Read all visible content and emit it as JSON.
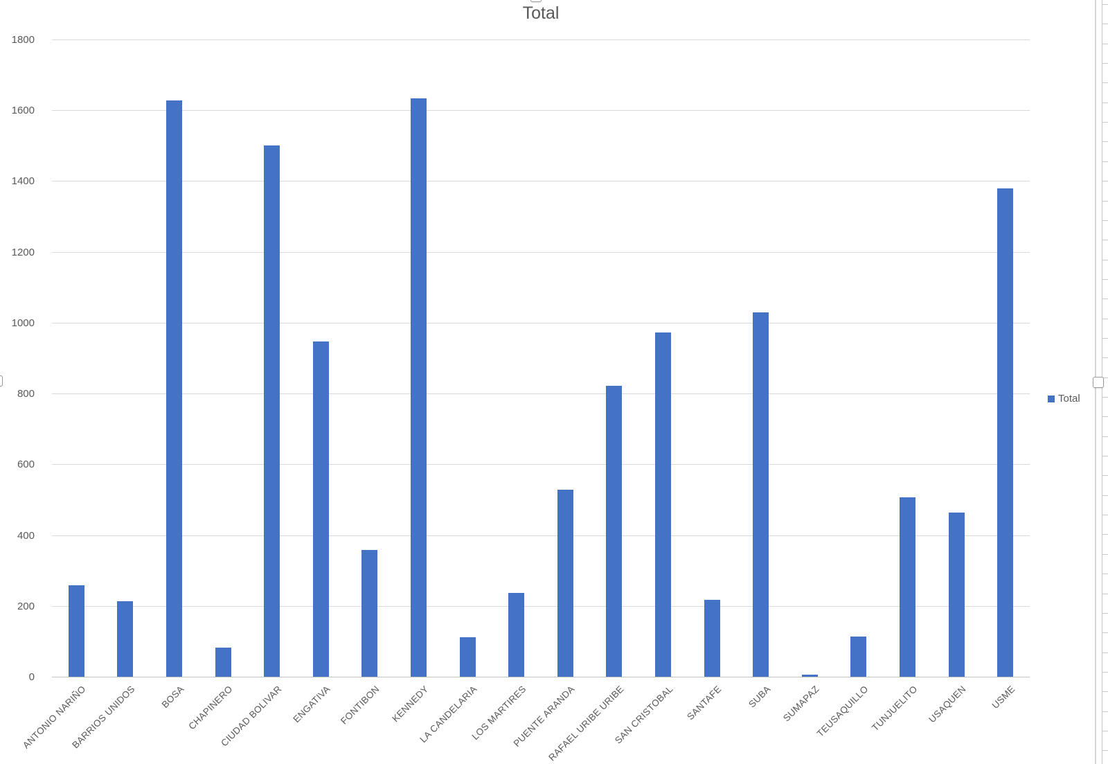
{
  "chart_data": {
    "type": "bar",
    "title": "Total",
    "categories": [
      "ANTONIO NARIÑO",
      "BARRIOS UNIDOS",
      "BOSA",
      "CHAPINERO",
      "CIUDAD BOLIVAR",
      "ENGATIVA",
      "FONTIBON",
      "KENNEDY",
      "LA CANDELARIA",
      "LOS MARTIRES",
      "PUENTE ARANDA",
      "RAFAEL URIBE URIBE",
      "SAN CRISTOBAL",
      "SANTAFE",
      "SUBA",
      "SUMAPAZ",
      "TEUSAQUILLO",
      "TUNJUELITO",
      "USAQUEN",
      "USME"
    ],
    "series": [
      {
        "name": "Total",
        "color": "#4472C4",
        "values": [
          258,
          213,
          1627,
          83,
          1500,
          946,
          359,
          1633,
          112,
          236,
          528,
          822,
          972,
          217,
          1029,
          6,
          114,
          507,
          463,
          1380
        ]
      }
    ],
    "xlabel": "",
    "ylabel": "",
    "ylim": [
      0,
      1800
    ],
    "ytick_step": 200,
    "grid": true,
    "legend": {
      "label": "Total",
      "position": "right"
    }
  },
  "colors": {
    "bar": "#4472C4",
    "gridline": "#D9D9D9",
    "text": "#595959"
  }
}
